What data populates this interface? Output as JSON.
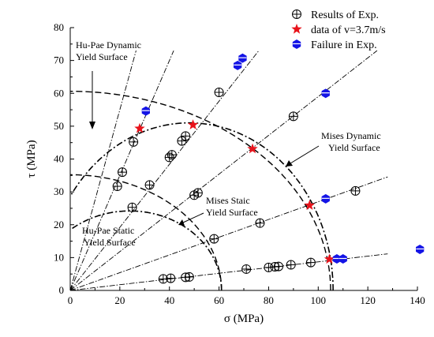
{
  "chart_data": {
    "type": "scatter",
    "xlabel": "σ (MPa)",
    "ylabel": "τ (MPa)",
    "xlim": [
      0,
      140
    ],
    "ylim": [
      0,
      80
    ],
    "x_ticks": [
      "0",
      "20",
      "40",
      "60",
      "80",
      "100",
      "120",
      "140"
    ],
    "y_ticks": [
      "0",
      "10",
      "20",
      "30",
      "40",
      "50",
      "60",
      "70",
      "80"
    ],
    "x_tick_values": [
      0,
      20,
      40,
      60,
      80,
      100,
      120,
      140
    ],
    "y_tick_values": [
      0,
      10,
      20,
      30,
      40,
      50,
      60,
      70,
      80
    ],
    "legend_position": "top-right",
    "series": [
      {
        "name": "Results of Exp.",
        "marker": "circle-plus",
        "color": "#000000",
        "points": [
          [
            37.5,
            3.5
          ],
          [
            40.5,
            3.7
          ],
          [
            46.5,
            4.0
          ],
          [
            48.0,
            4.1
          ],
          [
            71.0,
            6.5
          ],
          [
            80.0,
            7.0
          ],
          [
            82.5,
            7.2
          ],
          [
            84.0,
            7.3
          ],
          [
            89.0,
            7.8
          ],
          [
            97.0,
            8.5
          ],
          [
            58.0,
            15.7
          ],
          [
            76.5,
            20.5
          ],
          [
            115.0,
            30.3
          ],
          [
            25.0,
            25.3
          ],
          [
            32.0,
            32.1
          ],
          [
            19.0,
            31.7
          ],
          [
            21.0,
            36.0
          ],
          [
            40.0,
            40.5
          ],
          [
            41.0,
            41.3
          ],
          [
            50.0,
            29.0
          ],
          [
            51.5,
            29.7
          ],
          [
            45.0,
            45.5
          ],
          [
            46.5,
            47.0
          ],
          [
            25.5,
            45.2
          ],
          [
            60.0,
            60.3
          ],
          [
            90.0,
            53.0
          ]
        ]
      },
      {
        "name": "data of v=3.7m/s",
        "marker": "star",
        "color": "#e8131b",
        "points": [
          [
            28.0,
            49.3
          ],
          [
            49.5,
            50.4
          ],
          [
            73.5,
            43.1
          ],
          [
            96.5,
            25.9
          ],
          [
            104.5,
            9.5
          ]
        ]
      },
      {
        "name": "Failure in Exp.",
        "marker": "hexagon",
        "color": "#1414e6",
        "points": [
          [
            30.5,
            54.6
          ],
          [
            67.5,
            68.5
          ],
          [
            69.5,
            70.7
          ],
          [
            103.0,
            60.0
          ],
          [
            103.0,
            27.9
          ],
          [
            107.5,
            9.6
          ],
          [
            110.0,
            9.6
          ],
          [
            141.0,
            12.5
          ]
        ]
      }
    ],
    "curves": [
      {
        "type": "mises-ellipse",
        "sigma0": 105,
        "dash": "long",
        "annotation": "Mises Dynamic Yield Surface"
      },
      {
        "type": "hupae-ellipse",
        "sigma0": 106,
        "tau0": 51,
        "center": 48,
        "dash": "dashdot",
        "annotation": "Hu-Pae Dynamic Yield Surface"
      },
      {
        "type": "mises-ellipse",
        "sigma0": 61,
        "dash": "long",
        "annotation": "Mises Staic Yield Surface"
      },
      {
        "type": "hupae-ellipse",
        "sigma0": 61,
        "tau0": 24.2,
        "center": 24,
        "dash": "dashdot",
        "annotation": "Hu-Pae Static Yield Surface"
      }
    ],
    "loading_path_slopes": [
      0.087,
      0.27,
      0.59,
      0.96,
      1.75,
      2.75
    ]
  },
  "annotations": {
    "hupae_dynamic_line1": "Hu-Pae Dynamic",
    "hupae_dynamic_line2": "Yield Surface",
    "mises_dynamic_line1": "Mises Dynamic",
    "mises_dynamic_line2": "Yield Surface",
    "mises_static_line1": "Mises Staic",
    "mises_static_line2": "Yield Surface",
    "hupae_static_line1": "Hu-Pae Static",
    "hupae_static_line2": "Yield Surface"
  }
}
